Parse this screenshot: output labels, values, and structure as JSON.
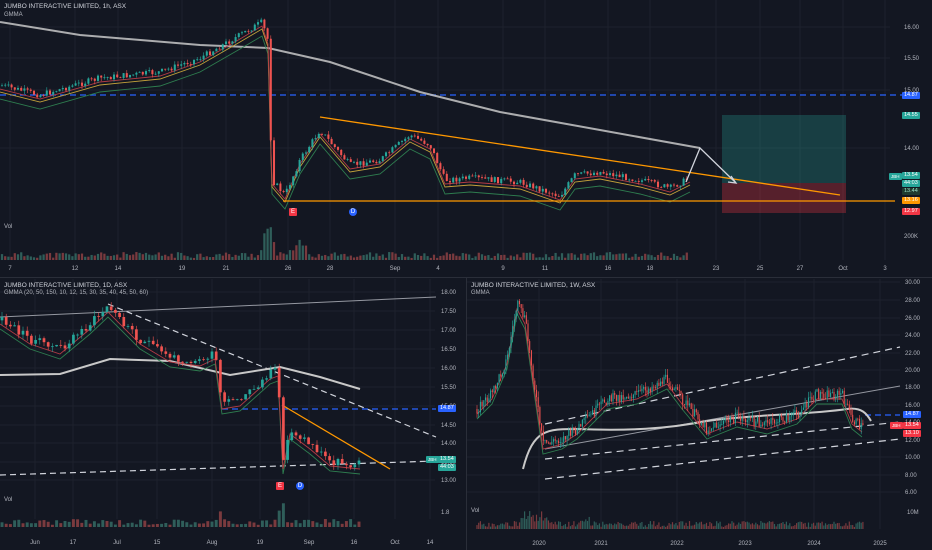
{
  "colors": {
    "bg": "#131722",
    "up": "#26a69a",
    "down": "#ef5350",
    "blue_line": "#2962ff",
    "orange": "#ff9800",
    "gray_ma": "#c8c8c8",
    "grid": "#1e222d"
  },
  "top": {
    "title": "JUMBO INTERACTIVE LIMITED, 1h, ASX",
    "indicator": "GMMA",
    "vol_label": "Vol",
    "price_ticks": [
      "16.00",
      "15.50",
      "15.00",
      "14.00"
    ],
    "time_ticks": [
      "7",
      "12",
      "14",
      "19",
      "21",
      "26",
      "28",
      "Sep",
      "4",
      "9",
      "11",
      "16",
      "18",
      "23",
      "25",
      "27",
      "Oct",
      "3"
    ],
    "vol_tick": "200K",
    "tags": {
      "dashed_level": "14.87",
      "target": "14.55",
      "price_main": "13.54",
      "price_sub": "44:03",
      "ma": "13.44",
      "stop_a": "13.16",
      "stop_b": "12.97"
    },
    "badge": "JBH",
    "events": {
      "earnings": "E",
      "dividend": "D"
    }
  },
  "bl": {
    "title": "JUMBO INTERACTIVE LIMITED, 1D, ASX",
    "indicator": "GMMA (20, 50, 150, 10, 12, 15, 30, 35, 40, 45, 50, 60)",
    "vol_label": "Vol",
    "price_ticks": [
      "18.00",
      "17.50",
      "17.00",
      "16.50",
      "16.00",
      "15.50",
      "15.00",
      "14.50",
      "14.00",
      "13.50",
      "13.00"
    ],
    "time_ticks": [
      "Jun",
      "17",
      "Jul",
      "15",
      "Aug",
      "19",
      "Sep",
      "16",
      "Oct",
      "14"
    ],
    "vol_tick": "1.8",
    "tags": {
      "dashed_level": "14.87",
      "price_main": "13.54",
      "price_sub": "44:03"
    },
    "badge": "JBH",
    "events": {
      "earnings": "E",
      "dividend": "D"
    }
  },
  "br": {
    "title": "JUMBO INTERACTIVE LIMITED, 1W, ASX",
    "indicator": "GMMA",
    "vol_label": "Vol",
    "price_ticks": [
      "30.00",
      "28.00",
      "26.00",
      "24.00",
      "22.00",
      "20.00",
      "18.00",
      "16.00",
      "14.00",
      "12.00",
      "10.00",
      "8.00",
      "6.00"
    ],
    "time_ticks": [
      "2020",
      "2021",
      "2022",
      "2023",
      "2024",
      "2025"
    ],
    "vol_tick": "10M",
    "tags": {
      "dashed_level": "14.87",
      "price_main": "13.54",
      "price_sub": "13.10"
    },
    "badge": "JBH"
  }
}
